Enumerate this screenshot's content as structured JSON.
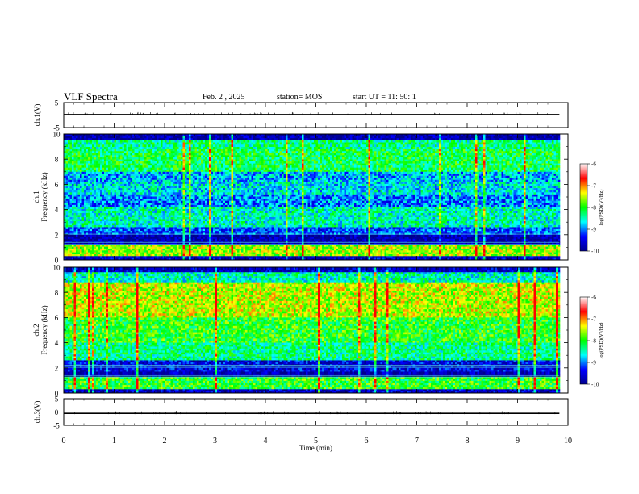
{
  "header": {
    "title": "VLF Spectra",
    "date": "Feb. 2 , 2025",
    "station": "station= MOS",
    "start": "start UT = 11: 50: 1"
  },
  "colors": {
    "colormap": [
      "#00008c",
      "#0000ff",
      "#00ffff",
      "#00ff00",
      "#ffff00",
      "#ff0000",
      "#ffffff"
    ]
  },
  "chart_data": [
    {
      "type": "line",
      "ylabel": "ch.1(V)",
      "yticks": [
        "5",
        "-5"
      ],
      "ylim": [
        -5,
        5
      ],
      "series": [
        {
          "values": [
            0,
            0
          ]
        }
      ]
    },
    {
      "type": "heatmap",
      "ylabel": "ch.1\nFrequency (kHz)",
      "ylim": [
        0,
        10
      ],
      "yticks": [
        "0",
        "2",
        "4",
        "6",
        "8",
        "10"
      ],
      "colorbar": {
        "label": "log(PSD)(V²/Hz)",
        "range": [
          -10,
          -6
        ],
        "ticks": [
          "-6",
          "-7",
          "-8",
          "-9",
          "-10"
        ]
      },
      "bands": [
        {
          "f": [
            9.5,
            10
          ],
          "level": 0.05
        },
        {
          "f": [
            8.8,
            9.5
          ],
          "level": 0.5
        },
        {
          "f": [
            7,
            8.8
          ],
          "level": 0.55
        },
        {
          "f": [
            6.2,
            7
          ],
          "level": 0.35
        },
        {
          "f": [
            5.2,
            6.2
          ],
          "level": 0.4
        },
        {
          "f": [
            4.2,
            5.2
          ],
          "level": 0.3
        },
        {
          "f": [
            2.6,
            4.2
          ],
          "level": 0.45
        },
        {
          "f": [
            2.0,
            2.6
          ],
          "level": 0.25
        },
        {
          "f": [
            1.2,
            2.0
          ],
          "level": 0.05
        },
        {
          "f": [
            0.3,
            1.2
          ],
          "level": 0.72
        },
        {
          "f": [
            0,
            0.3
          ],
          "level": 0.1
        }
      ]
    },
    {
      "type": "heatmap",
      "ylabel": "ch.2\nFrequency (kHz)",
      "ylim": [
        0,
        10
      ],
      "yticks": [
        "0",
        "2",
        "4",
        "6",
        "8",
        "10"
      ],
      "colorbar": {
        "label": "log(PSD)(V²/Hz)",
        "range": [
          -10,
          -6
        ],
        "ticks": [
          "-6",
          "-7",
          "-8",
          "-9",
          "-10"
        ]
      },
      "bands": [
        {
          "f": [
            9.6,
            10
          ],
          "level": 0.1
        },
        {
          "f": [
            8.8,
            9.6
          ],
          "level": 0.45
        },
        {
          "f": [
            6.0,
            8.8
          ],
          "level": 0.75
        },
        {
          "f": [
            4.0,
            6.0
          ],
          "level": 0.6
        },
        {
          "f": [
            2.6,
            4.0
          ],
          "level": 0.5
        },
        {
          "f": [
            1.7,
            2.6
          ],
          "level": 0.15
        },
        {
          "f": [
            1.3,
            1.7
          ],
          "level": 0.05
        },
        {
          "f": [
            0.3,
            1.3
          ],
          "level": 0.6
        },
        {
          "f": [
            0,
            0.3
          ],
          "level": 0.1
        }
      ]
    },
    {
      "type": "line",
      "ylabel": "ch.3(V)",
      "yticks": [
        "5",
        "0",
        "-5"
      ],
      "ylim": [
        -5,
        5
      ],
      "xlabel": "Time (min)",
      "xlim": [
        0,
        10
      ],
      "xticks": [
        "0",
        "1",
        "2",
        "3",
        "4",
        "5",
        "6",
        "7",
        "8",
        "9",
        "10"
      ],
      "data_end_min": 9.83,
      "series": [
        {
          "values": [
            0,
            0
          ]
        }
      ]
    }
  ]
}
